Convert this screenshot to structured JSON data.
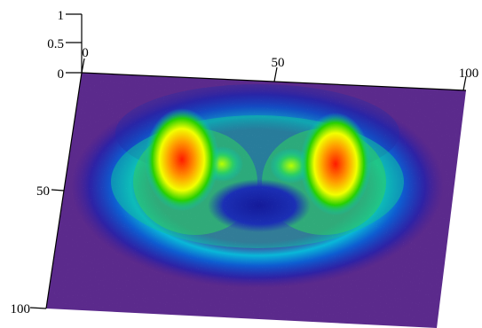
{
  "chart_data": {
    "type": "surface3d",
    "title": "",
    "xlabel": "",
    "ylabel": "",
    "zlabel": "",
    "x_ticks": [
      "0",
      "50",
      "100"
    ],
    "y_ticks": [
      "50",
      "100"
    ],
    "z_ticks": [
      "0",
      "0.5",
      "1"
    ],
    "xlim": [
      0,
      100
    ],
    "ylim": [
      0,
      100
    ],
    "zlim": [
      0,
      1
    ],
    "colormap": "jet (purple floor, blue-cyan-green-yellow-red peaks)",
    "background_color": "#5b2a8c",
    "peaks": [
      {
        "x": 24,
        "y": 30,
        "z": 1.0
      },
      {
        "x": 76,
        "y": 30,
        "z": 1.0
      },
      {
        "x": 38,
        "y": 42,
        "z": 0.55
      },
      {
        "x": 62,
        "y": 42,
        "z": 0.55
      }
    ],
    "ring": {
      "center_x": 50,
      "center_y": 45,
      "radius": 30,
      "z": 0.35
    },
    "hole": {
      "center_x": 50,
      "center_y": 55,
      "z": 0.0
    }
  }
}
